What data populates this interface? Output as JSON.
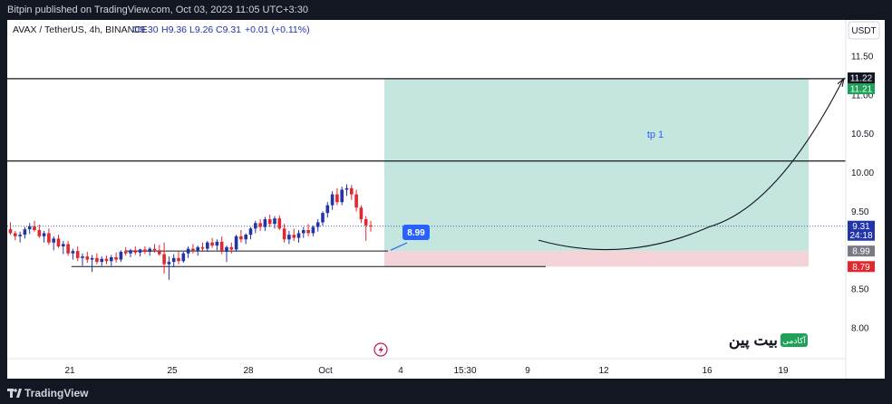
{
  "header": {
    "published": "Bitpin published on TradingView.com, Oct 03, 2023 11:05 UTC+3:30"
  },
  "legend": {
    "symbol": "AVAX / TetherUS, 4h, BINANCE",
    "open": "O9.30",
    "high": "H9.36",
    "low": "L9.26",
    "close": "C9.31",
    "change": "+0.01 (+0.11%)"
  },
  "currency": "USDT",
  "footer": {
    "brand": "TradingView"
  },
  "watermark": {
    "brand": "بیت پین",
    "badge": "آکادمی"
  },
  "colors": {
    "up": "#2134a8",
    "down": "#e0282e",
    "profit": "#c5e6df",
    "loss": "#f3d3d8",
    "tp_text": "#2962ff"
  },
  "chart_data": {
    "type": "candlestick",
    "y_axis": {
      "ticks": [
        "11.50",
        "11.00",
        "10.50",
        "10.00",
        "9.50",
        "9.00",
        "8.50",
        "8.00"
      ],
      "range": [
        7.53,
        11.77
      ]
    },
    "x_axis": {
      "ticks": [
        "21",
        "25",
        "28",
        "Oct",
        "4",
        "15:30",
        "9",
        "12",
        "16",
        "19"
      ]
    },
    "price_badges": [
      {
        "text": "11.22",
        "value": 11.22,
        "style": "dark"
      },
      {
        "text": "11.21",
        "value": 11.21,
        "style": "green"
      },
      {
        "text": "9.31",
        "sub": "24:18",
        "value": 9.31,
        "style": "blue"
      },
      {
        "text": "8.99",
        "value": 8.99,
        "style": "gray"
      },
      {
        "text": "8.79",
        "value": 8.79,
        "style": "red"
      }
    ],
    "horizontal_lines": [
      11.21,
      10.15
    ],
    "support_lines": [
      8.99,
      8.79
    ],
    "position": {
      "entry": 8.99,
      "target": 11.21,
      "stop": 8.79
    },
    "target_label": "tp 1",
    "callout": {
      "text": "8.99",
      "value": 8.99
    },
    "projection_path": [
      [
        9.3,
        9.13
      ],
      [
        12.0,
        8.97
      ],
      [
        15.0,
        9.3
      ],
      [
        18.2,
        10.5
      ],
      [
        19.5,
        11.2
      ]
    ],
    "candles": [
      [
        9.27,
        9.36,
        9.2,
        9.22
      ],
      [
        9.22,
        9.25,
        9.13,
        9.18
      ],
      [
        9.18,
        9.24,
        9.1,
        9.2
      ],
      [
        9.2,
        9.3,
        9.15,
        9.27
      ],
      [
        9.27,
        9.35,
        9.21,
        9.31
      ],
      [
        9.31,
        9.38,
        9.24,
        9.26
      ],
      [
        9.26,
        9.33,
        9.16,
        9.18
      ],
      [
        9.18,
        9.25,
        9.1,
        9.22
      ],
      [
        9.22,
        9.28,
        9.07,
        9.1
      ],
      [
        9.1,
        9.18,
        9.0,
        9.15
      ],
      [
        9.15,
        9.2,
        9.03,
        9.05
      ],
      [
        9.05,
        9.12,
        8.95,
        9.08
      ],
      [
        9.08,
        9.12,
        8.93,
        8.96
      ],
      [
        8.96,
        9.02,
        8.88,
        8.99
      ],
      [
        8.99,
        9.05,
        8.86,
        8.9
      ],
      [
        8.9,
        8.96,
        8.8,
        8.92
      ],
      [
        8.92,
        8.98,
        8.84,
        8.88
      ],
      [
        8.88,
        8.94,
        8.72,
        8.9
      ],
      [
        8.9,
        8.96,
        8.82,
        8.85
      ],
      [
        8.85,
        8.92,
        8.8,
        8.89
      ],
      [
        8.89,
        8.93,
        8.82,
        8.86
      ],
      [
        8.86,
        8.94,
        8.8,
        8.91
      ],
      [
        8.91,
        8.97,
        8.84,
        8.88
      ],
      [
        8.88,
        9.0,
        8.85,
        8.98
      ],
      [
        8.98,
        9.04,
        8.93,
        8.96
      ],
      [
        8.96,
        9.02,
        8.91,
        9.0
      ],
      [
        9.0,
        9.05,
        8.94,
        8.97
      ],
      [
        8.97,
        9.02,
        8.92,
        9.01
      ],
      [
        9.01,
        9.05,
        8.95,
        8.98
      ],
      [
        8.98,
        9.04,
        8.93,
        9.02
      ],
      [
        9.02,
        9.08,
        8.97,
        9.0
      ],
      [
        9.0,
        9.07,
        8.93,
        8.95
      ],
      [
        8.95,
        9.1,
        8.7,
        8.82
      ],
      [
        8.82,
        8.92,
        8.62,
        8.85
      ],
      [
        8.85,
        8.95,
        8.78,
        8.9
      ],
      [
        8.9,
        8.98,
        8.82,
        8.86
      ],
      [
        8.86,
        8.98,
        8.84,
        8.96
      ],
      [
        8.96,
        9.05,
        8.9,
        9.02
      ],
      [
        9.02,
        9.08,
        8.96,
        8.99
      ],
      [
        8.99,
        9.06,
        8.93,
        9.04
      ],
      [
        9.04,
        9.1,
        8.98,
        9.02
      ],
      [
        9.02,
        9.12,
        8.98,
        9.1
      ],
      [
        9.1,
        9.16,
        9.03,
        9.06
      ],
      [
        9.06,
        9.14,
        9.0,
        9.11
      ],
      [
        9.11,
        9.18,
        8.95,
        8.98
      ],
      [
        8.98,
        9.06,
        8.85,
        9.04
      ],
      [
        9.04,
        9.1,
        8.96,
        9.01
      ],
      [
        9.01,
        9.2,
        8.98,
        9.18
      ],
      [
        9.18,
        9.26,
        9.1,
        9.14
      ],
      [
        9.14,
        9.22,
        9.08,
        9.2
      ],
      [
        9.2,
        9.3,
        9.14,
        9.28
      ],
      [
        9.28,
        9.38,
        9.22,
        9.35
      ],
      [
        9.35,
        9.4,
        9.25,
        9.3
      ],
      [
        9.3,
        9.43,
        9.25,
        9.4
      ],
      [
        9.4,
        9.46,
        9.3,
        9.34
      ],
      [
        9.34,
        9.44,
        9.28,
        9.41
      ],
      [
        9.41,
        9.45,
        9.26,
        9.28
      ],
      [
        9.28,
        9.34,
        9.1,
        9.14
      ],
      [
        9.14,
        9.25,
        9.08,
        9.2
      ],
      [
        9.2,
        9.28,
        9.12,
        9.16
      ],
      [
        9.16,
        9.26,
        9.1,
        9.22
      ],
      [
        9.22,
        9.3,
        9.16,
        9.26
      ],
      [
        9.26,
        9.34,
        9.18,
        9.22
      ],
      [
        9.22,
        9.32,
        9.18,
        9.3
      ],
      [
        9.3,
        9.4,
        9.24,
        9.36
      ],
      [
        9.36,
        9.5,
        9.32,
        9.48
      ],
      [
        9.48,
        9.62,
        9.42,
        9.58
      ],
      [
        9.58,
        9.76,
        9.52,
        9.72
      ],
      [
        9.72,
        9.8,
        9.58,
        9.62
      ],
      [
        9.62,
        9.82,
        9.58,
        9.78
      ],
      [
        9.78,
        9.85,
        9.7,
        9.8
      ],
      [
        9.8,
        9.84,
        9.65,
        9.72
      ],
      [
        9.72,
        9.78,
        9.5,
        9.55
      ],
      [
        9.55,
        9.58,
        9.35,
        9.4
      ],
      [
        9.4,
        9.44,
        9.12,
        9.32
      ],
      [
        9.32,
        9.38,
        9.24,
        9.31
      ]
    ]
  }
}
